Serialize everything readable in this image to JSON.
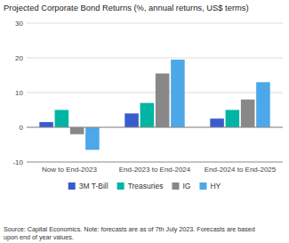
{
  "chart_data": {
    "type": "bar",
    "title": "Projected Corporate Bond Returns (%, annual returns, US$ terms)",
    "categories": [
      "Now to End-2023",
      "End-2023 to End-2024",
      "End-2024 to End-2025"
    ],
    "series": [
      {
        "name": "3M T-Bill",
        "color": "#3a5bcc",
        "values": [
          1.5,
          4.0,
          2.5
        ]
      },
      {
        "name": "Treasuries",
        "color": "#00b5a3",
        "values": [
          5.0,
          7.0,
          5.0
        ]
      },
      {
        "name": "IG",
        "color": "#888888",
        "values": [
          -2.0,
          15.5,
          8.0
        ]
      },
      {
        "name": "HY",
        "color": "#4ca8e8",
        "values": [
          -6.5,
          19.5,
          13.0
        ]
      }
    ],
    "ylim": [
      -10,
      30
    ],
    "yticks": [
      -10,
      0,
      10,
      20,
      30
    ],
    "grid": true,
    "legend": "bottom",
    "footnote": "Source: Capital Economics. Note: forecasts are as of 7th July 2023. Forecasts are based\nupon end of year values."
  }
}
